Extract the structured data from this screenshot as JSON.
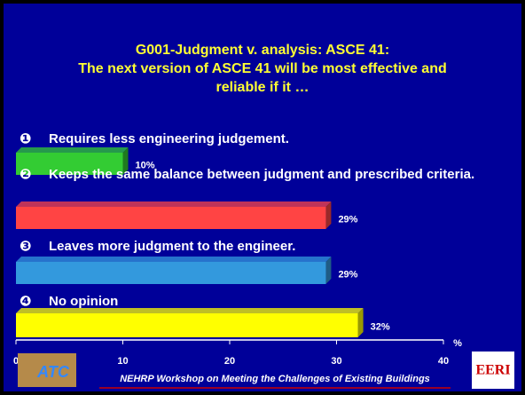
{
  "chart_data": {
    "type": "bar",
    "title": [
      "G001-Judgment v. analysis: ASCE 41:",
      "The next version of ASCE 41 will be most effective and",
      "reliable if it …"
    ],
    "bullets": [
      "❶",
      "❷",
      "❸",
      "❹"
    ],
    "categories": [
      "Requires less engineering judgement.",
      "Keeps the same balance between judgment and prescribed criteria.",
      "Leaves more judgment to the engineer.",
      "No opinion"
    ],
    "values": [
      10,
      29,
      29,
      32
    ],
    "value_labels": [
      "10%",
      "29%",
      "29%",
      "32%"
    ],
    "colors": [
      "#33cc33",
      "#ff4444",
      "#3399dd",
      "#ffff00"
    ],
    "xlim": [
      0,
      40
    ],
    "xticks": [
      0,
      10,
      20,
      30,
      40
    ],
    "xlabel": "%",
    "footer": "NEHRP Workshop on Meeting the Challenges of Existing Buildings",
    "logos": [
      "ATC",
      "EERI"
    ]
  }
}
